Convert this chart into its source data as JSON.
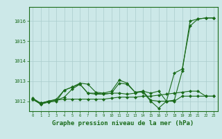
{
  "background_color": "#cce8e8",
  "grid_color": "#aacccc",
  "line_color": "#1a6b1a",
  "xlabel": "Graphe pression niveau de la mer (hPa)",
  "xlabel_fontsize": 6.5,
  "ylabel_labels": [
    1012,
    1013,
    1014,
    1015,
    1016
  ],
  "xlim": [
    -0.5,
    23.5
  ],
  "ylim": [
    1011.5,
    1016.7
  ],
  "series": [
    {
      "x": [
        0,
        1,
        2,
        3,
        4,
        5,
        6,
        7,
        8,
        9,
        10,
        11,
        12,
        13,
        14,
        15,
        16,
        17,
        18,
        19,
        20,
        21,
        22,
        23
      ],
      "y": [
        1012.1,
        1011.85,
        1012.0,
        1012.05,
        1012.1,
        1012.1,
        1012.1,
        1012.1,
        1012.1,
        1012.1,
        1012.15,
        1012.2,
        1012.2,
        1012.2,
        1012.25,
        1012.25,
        1012.3,
        1012.35,
        1012.4,
        1012.45,
        1012.5,
        1012.5,
        1012.25,
        1012.25
      ]
    },
    {
      "x": [
        0,
        1,
        2,
        3,
        4,
        5,
        6,
        7,
        8,
        9,
        10,
        11,
        12,
        13,
        14,
        15,
        16,
        17,
        18,
        19,
        20,
        21,
        22,
        23
      ],
      "y": [
        1012.1,
        1011.85,
        1011.95,
        1012.0,
        1012.55,
        1012.7,
        1012.9,
        1012.85,
        1012.45,
        1012.4,
        1012.5,
        1013.05,
        1012.9,
        1012.45,
        1012.45,
        1012.0,
        1011.65,
        1012.0,
        1012.05,
        1013.5,
        1016.0,
        1016.1,
        1016.15,
        1016.15
      ]
    },
    {
      "x": [
        0,
        1,
        2,
        3,
        4,
        5,
        6,
        7,
        8,
        9,
        10,
        11,
        12,
        13,
        14,
        15,
        16,
        17,
        18,
        19,
        20,
        21,
        22,
        23
      ],
      "y": [
        1012.1,
        1011.9,
        1012.0,
        1012.05,
        1012.2,
        1012.6,
        1012.85,
        1012.4,
        1012.4,
        1012.35,
        1012.4,
        1012.9,
        1012.85,
        1012.45,
        1012.5,
        1012.05,
        1012.0,
        1012.0,
        1013.4,
        1013.6,
        1015.75,
        1016.1,
        1016.15,
        1016.15
      ]
    },
    {
      "x": [
        0,
        1,
        2,
        3,
        4,
        5,
        6,
        7,
        8,
        9,
        10,
        11,
        12,
        13,
        14,
        15,
        16,
        17,
        18,
        19,
        20,
        21,
        22,
        23
      ],
      "y": [
        1012.15,
        1011.9,
        1012.0,
        1012.1,
        1012.55,
        1012.7,
        1012.85,
        1012.4,
        1012.35,
        1012.35,
        1012.4,
        1012.4,
        1012.35,
        1012.4,
        1012.5,
        1012.4,
        1012.5,
        1012.0,
        1012.0,
        1012.25,
        1012.25,
        1012.25,
        1012.25,
        1012.25
      ]
    }
  ],
  "marker": "D",
  "marker_size": 2.0,
  "linewidth": 0.8
}
